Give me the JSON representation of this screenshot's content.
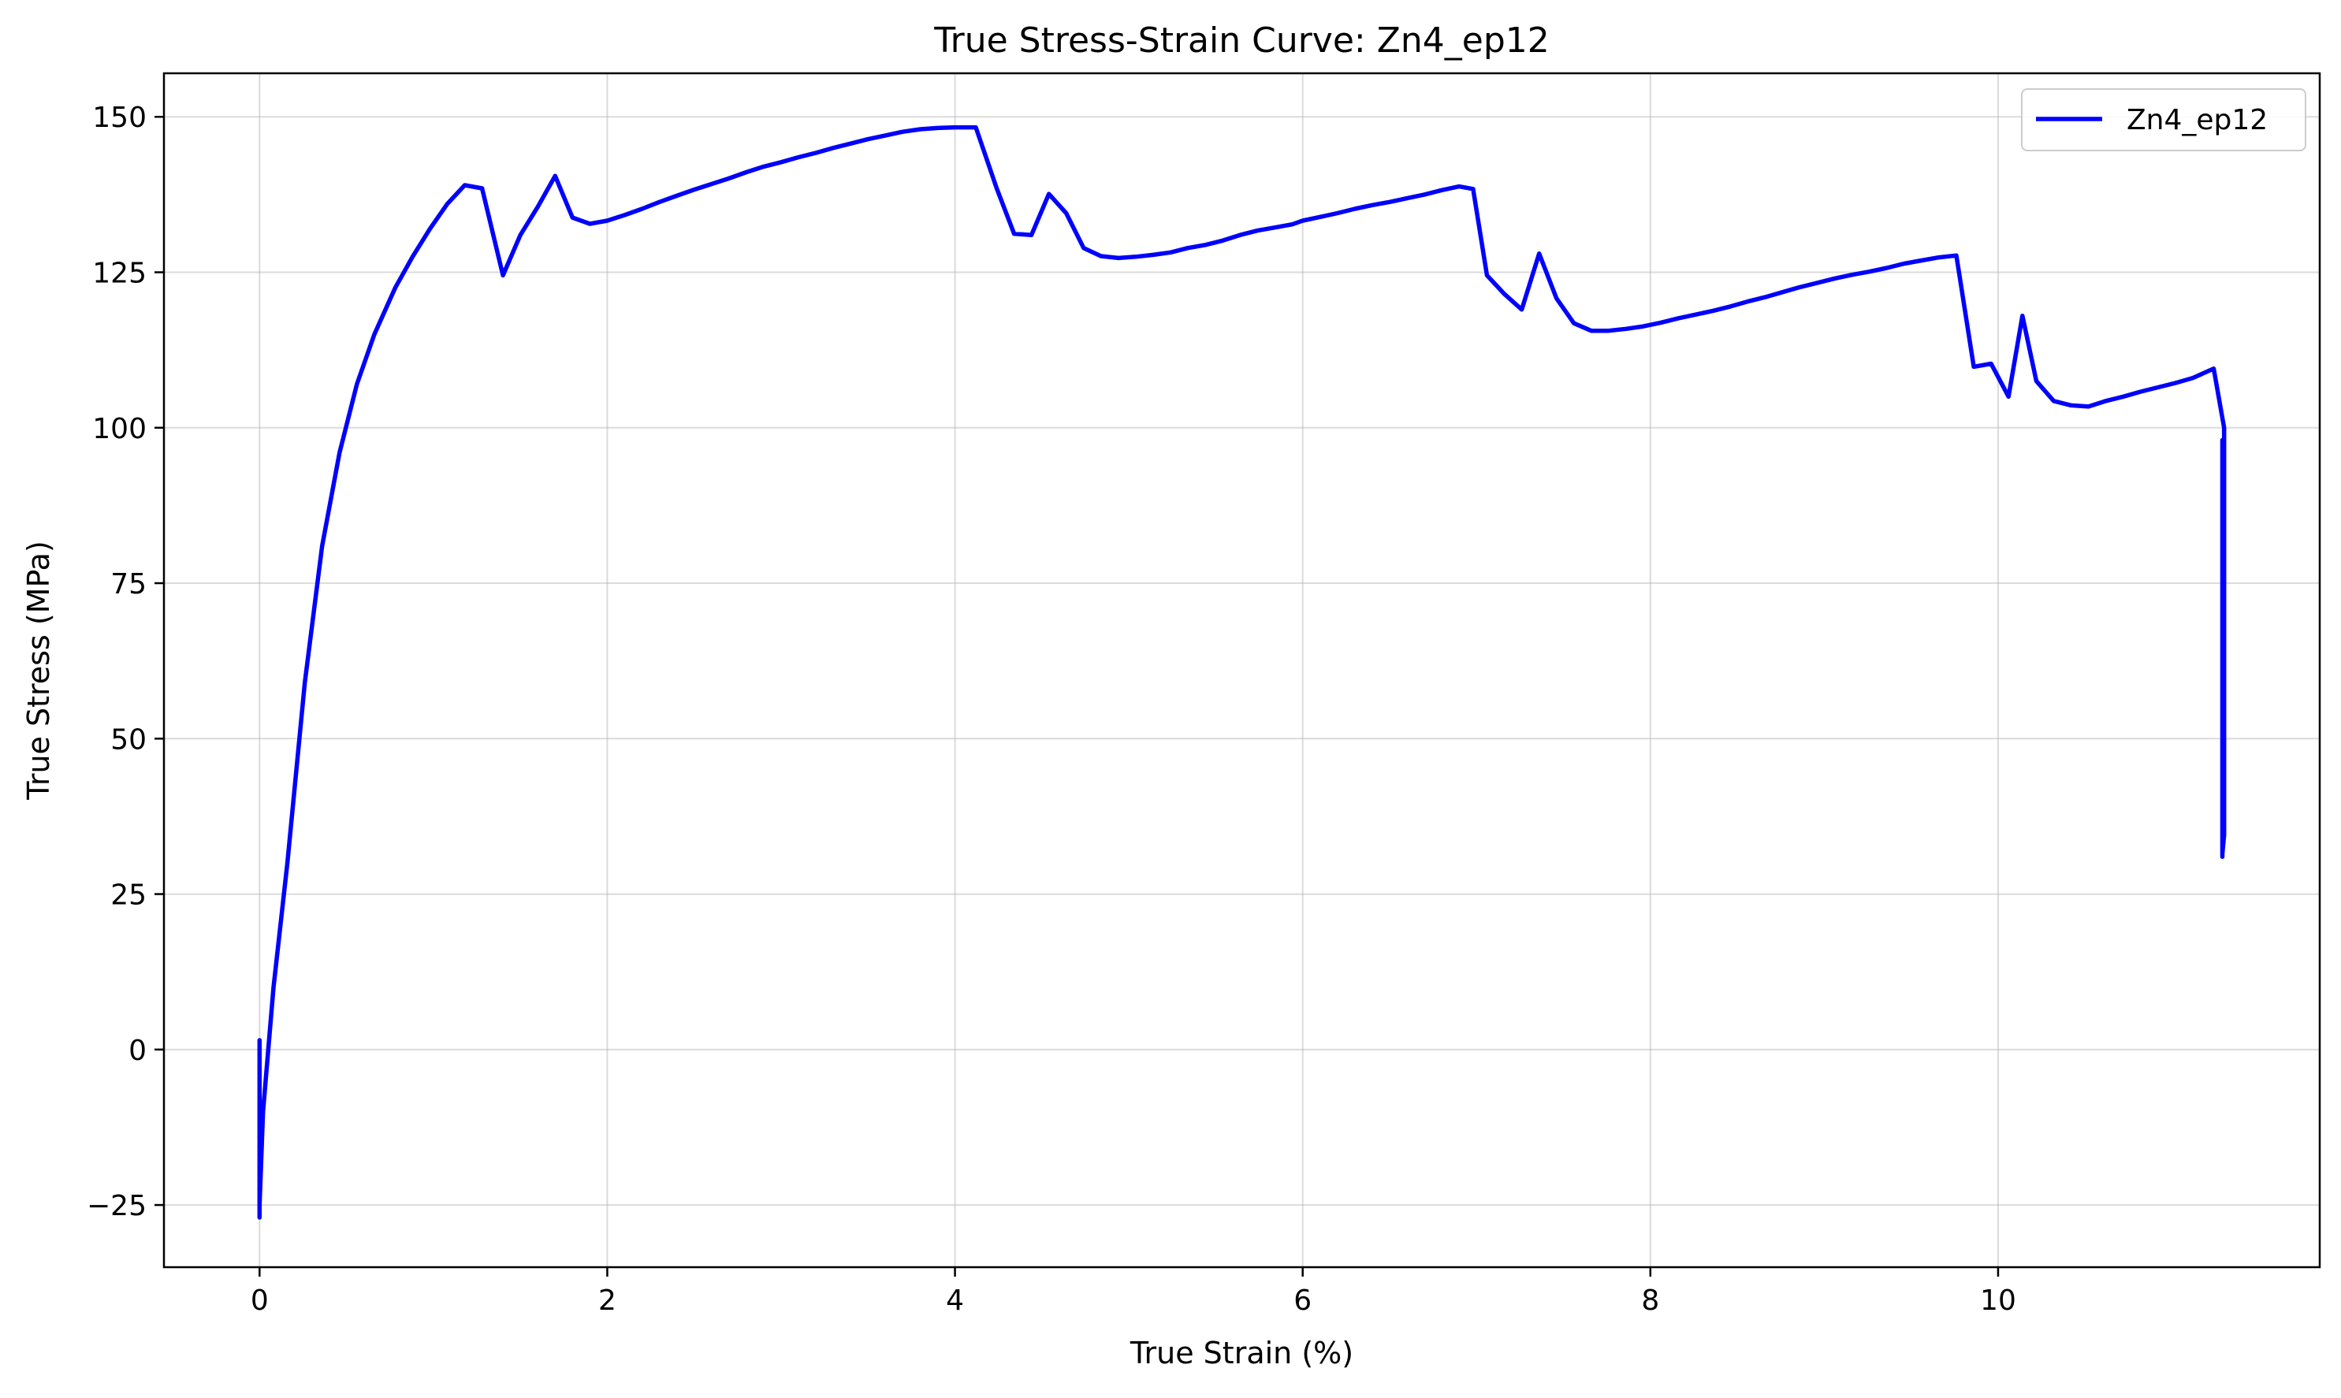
{
  "chart_data": {
    "type": "line",
    "title": "True Stress-Strain Curve: Zn4_ep12",
    "xlabel": "True Strain (%)",
    "ylabel": "True Stress (MPa)",
    "xlim": [
      -0.55,
      11.85
    ],
    "ylim": [
      -35,
      157
    ],
    "xticks": [
      0,
      2,
      4,
      6,
      8,
      10
    ],
    "yticks": [
      -25,
      0,
      25,
      50,
      75,
      100,
      125,
      150
    ],
    "grid": true,
    "legend_position": "top-right",
    "series": [
      {
        "name": "Zn4_ep12",
        "color": "#0000ff",
        "x": [
          0.0,
          0.0,
          0.0,
          0.02,
          0.08,
          0.16,
          0.26,
          0.36,
          0.46,
          0.56,
          0.66,
          0.78,
          0.88,
          0.98,
          1.08,
          1.18,
          1.28,
          1.4,
          1.5,
          1.6,
          1.7,
          1.8,
          1.9,
          2.0,
          2.1,
          2.2,
          2.3,
          2.4,
          2.5,
          2.6,
          2.7,
          2.8,
          2.9,
          3.0,
          3.1,
          3.2,
          3.3,
          3.4,
          3.5,
          3.6,
          3.7,
          3.8,
          3.9,
          4.0,
          4.12,
          4.24,
          4.34,
          4.44,
          4.54,
          4.64,
          4.74,
          4.84,
          4.94,
          5.04,
          5.14,
          5.24,
          5.34,
          5.44,
          5.54,
          5.64,
          5.74,
          5.84,
          5.94,
          6.0,
          6.1,
          6.2,
          6.3,
          6.4,
          6.5,
          6.6,
          6.7,
          6.8,
          6.9,
          6.98,
          7.06,
          7.16,
          7.26,
          7.36,
          7.46,
          7.56,
          7.66,
          7.76,
          7.86,
          7.96,
          8.06,
          8.16,
          8.26,
          8.36,
          8.46,
          8.56,
          8.66,
          8.76,
          8.86,
          8.96,
          9.06,
          9.16,
          9.26,
          9.36,
          9.46,
          9.56,
          9.66,
          9.76,
          9.86,
          9.96,
          10.06,
          10.14,
          10.22,
          10.32,
          10.42,
          10.52,
          10.62,
          10.72,
          10.82,
          10.92,
          11.02,
          11.12,
          11.24,
          11.3,
          11.3,
          11.29,
          11.29,
          11.29
        ],
        "y": [
          1.5,
          -27,
          -25,
          -10,
          10,
          30,
          59,
          81,
          96,
          107,
          115,
          122.5,
          127.5,
          132,
          136,
          139,
          138.5,
          124.5,
          131,
          135.5,
          140.5,
          133.8,
          132.8,
          133.3,
          134.2,
          135.2,
          136.3,
          137.3,
          138.3,
          139.2,
          140.1,
          141.1,
          142,
          142.7,
          143.5,
          144.2,
          145,
          145.7,
          146.4,
          147,
          147.6,
          148,
          148.2,
          148.3,
          148.3,
          138.5,
          131.2,
          131,
          137.6,
          134.5,
          128.9,
          127.6,
          127.3,
          127.5,
          127.8,
          128.2,
          128.9,
          129.4,
          130.1,
          131,
          131.7,
          132.2,
          132.7,
          133.3,
          133.9,
          134.5,
          135.2,
          135.8,
          136.3,
          136.9,
          137.5,
          138.2,
          138.8,
          138.4,
          124.5,
          121.5,
          119,
          128,
          120.8,
          116.8,
          115.6,
          115.6,
          115.9,
          116.3,
          116.9,
          117.6,
          118.2,
          118.8,
          119.5,
          120.3,
          121,
          121.8,
          122.6,
          123.3,
          124,
          124.6,
          125.1,
          125.7,
          126.4,
          126.9,
          127.4,
          127.7,
          109.8,
          110.3,
          105,
          118,
          107.5,
          104.3,
          103.6,
          103.4,
          104.3,
          105,
          105.8,
          106.5,
          107.2,
          108,
          109.5,
          100,
          34.5,
          31.5,
          31,
          98
        ]
      }
    ]
  }
}
